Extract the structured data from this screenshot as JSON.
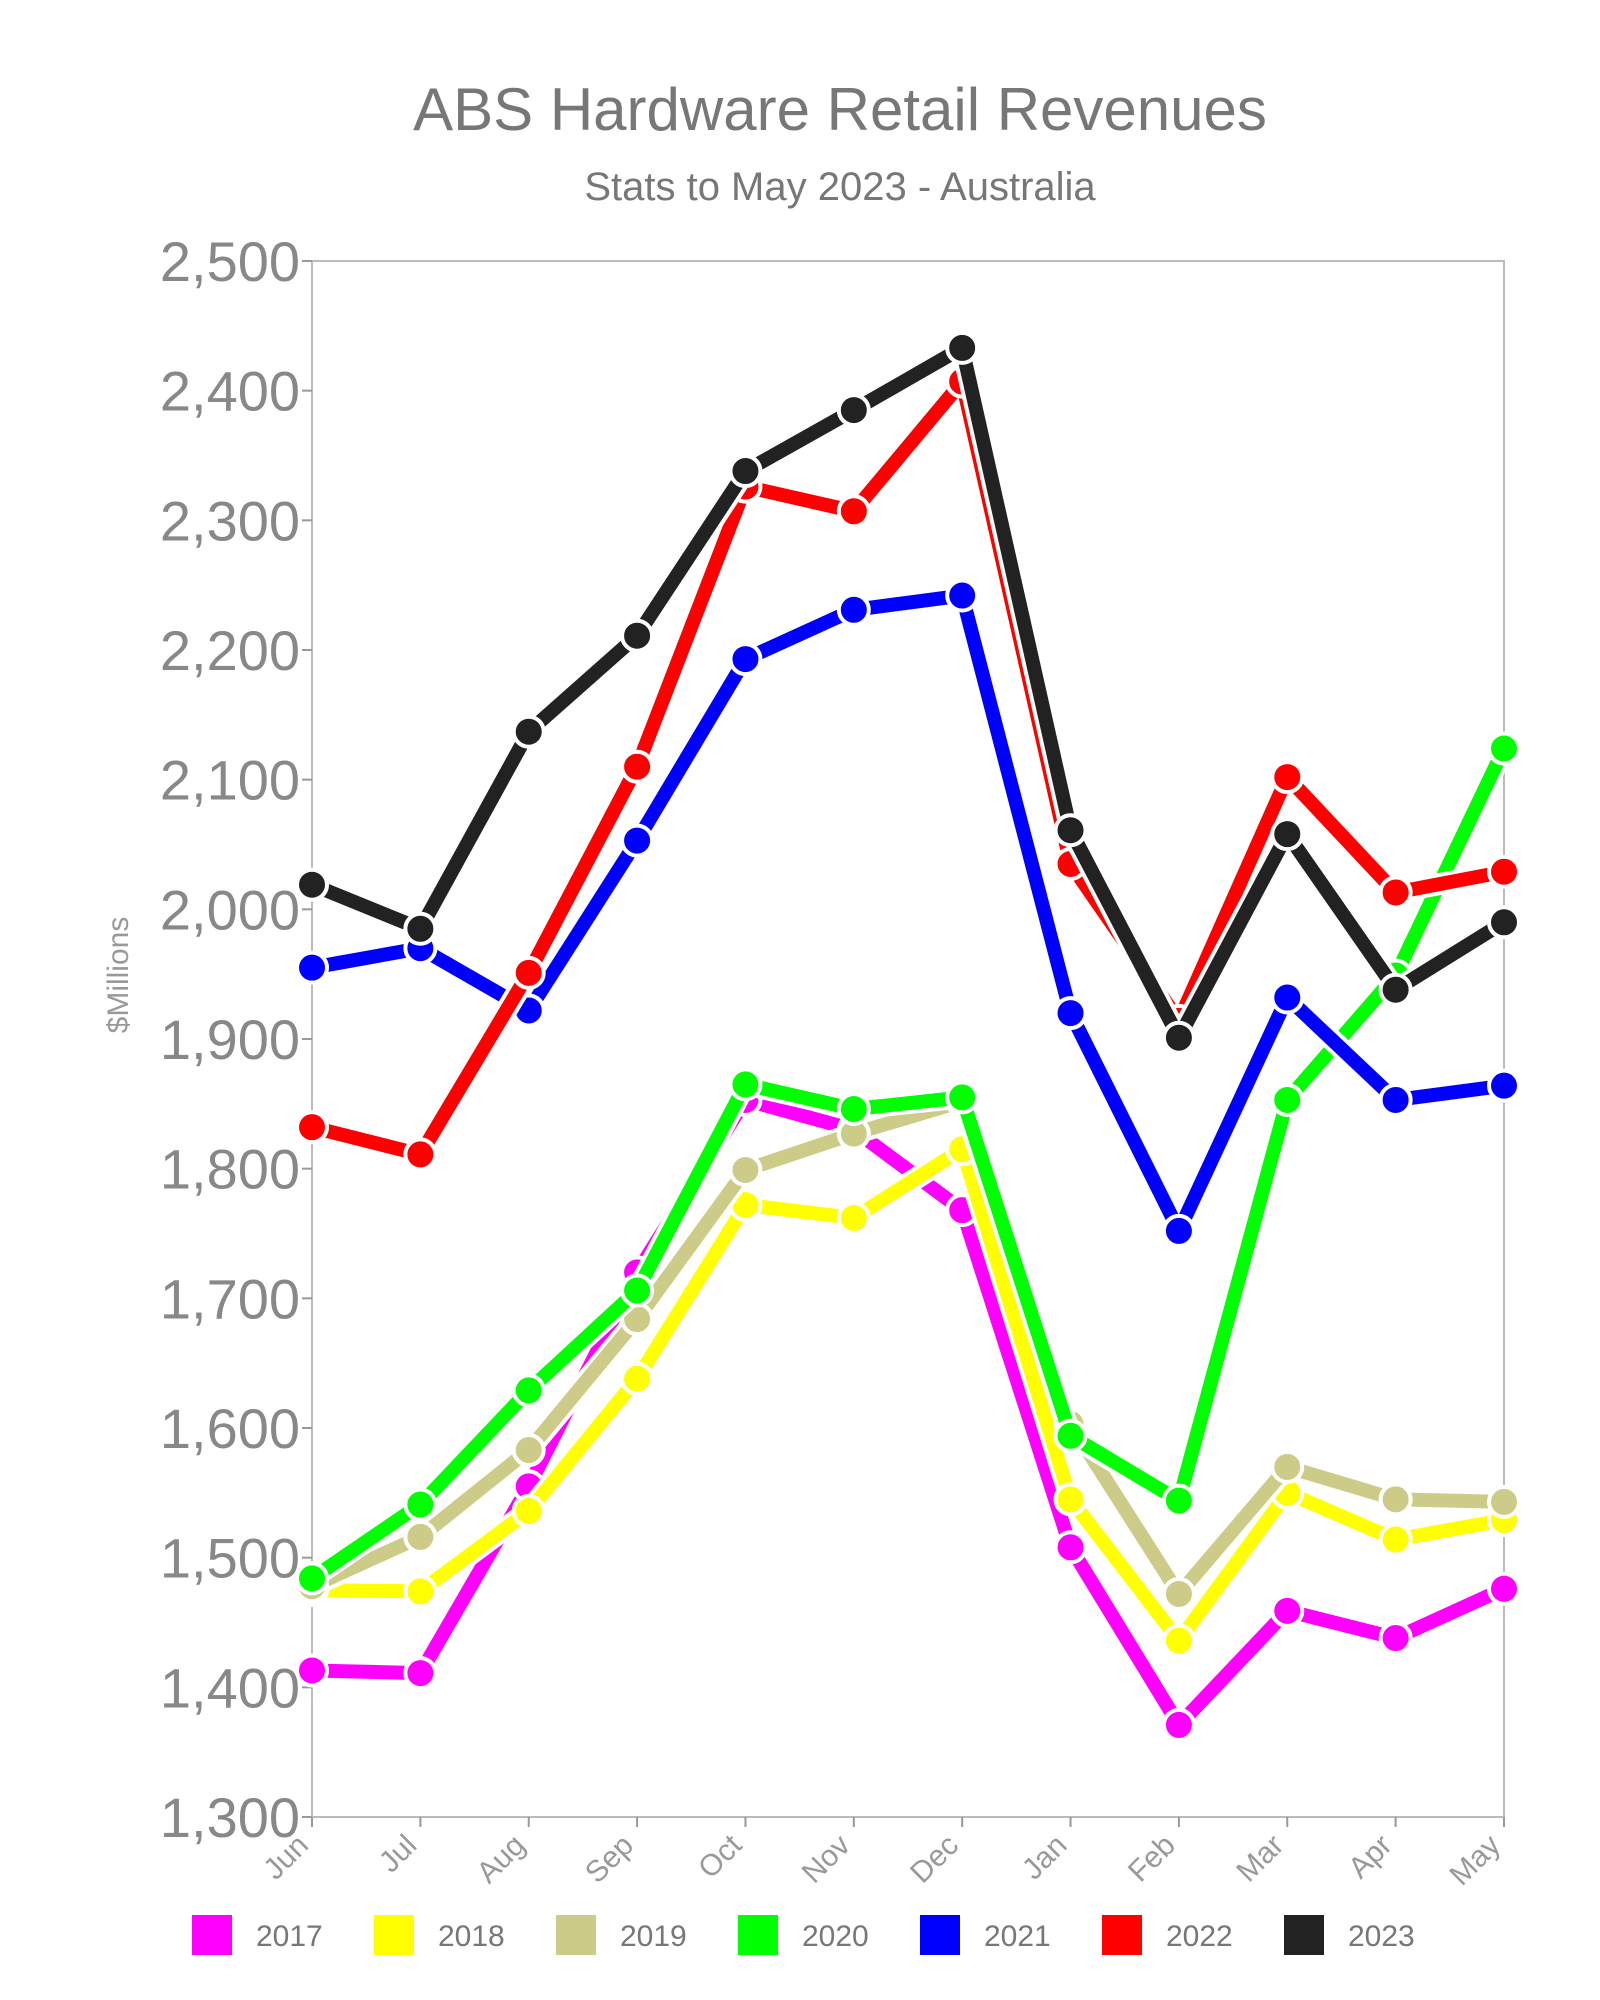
{
  "chart_data": {
    "type": "line",
    "title": "ABS Hardware Retail Revenues",
    "subtitle": "Stats to May 2023 - Australia",
    "xlabel": "",
    "ylabel": "$Millions",
    "ylim": [
      1300,
      2500
    ],
    "yticks": [
      1300,
      1400,
      1500,
      1600,
      1700,
      1800,
      1900,
      2000,
      2100,
      2200,
      2300,
      2400,
      2500
    ],
    "ytick_labels": [
      "1,300",
      "1,400",
      "1,500",
      "1,600",
      "1,700",
      "1,800",
      "1,900",
      "2,000",
      "2,100",
      "2,200",
      "2,300",
      "2,400",
      "2,500"
    ],
    "categories": [
      "Jun",
      "Jul",
      "Aug",
      "Sep",
      "Oct",
      "Nov",
      "Dec",
      "Jan",
      "Feb",
      "Mar",
      "Apr",
      "May"
    ],
    "grid": false,
    "legend_position": "bottom",
    "series": [
      {
        "name": "2017",
        "color": "#ff00ff",
        "values": [
          1413,
          1411,
          1555,
          1720,
          1853,
          1830,
          1768,
          1508,
          1371,
          1459,
          1438,
          1476
        ]
      },
      {
        "name": "2018",
        "color": "#ffff00",
        "values": [
          1475,
          1474,
          1536,
          1638,
          1772,
          1762,
          1815,
          1545,
          1436,
          1550,
          1514,
          1529
        ]
      },
      {
        "name": "2019",
        "color": "#cccc88",
        "values": [
          1478,
          1516,
          1583,
          1684,
          1799,
          1827,
          1852,
          1603,
          1472,
          1570,
          1545,
          1543
        ]
      },
      {
        "name": "2020",
        "color": "#00ff00",
        "values": [
          1484,
          1541,
          1629,
          1706,
          1865,
          1846,
          1855,
          1594,
          1544,
          1853,
          1949,
          2124
        ]
      },
      {
        "name": "2021",
        "color": "#0000ff",
        "values": [
          1955,
          1970,
          1922,
          2053,
          2193,
          2231,
          2242,
          1920,
          1752,
          1932,
          1853,
          1864
        ]
      },
      {
        "name": "2022",
        "color": "#ff0000",
        "values": [
          1832,
          1811,
          1951,
          2110,
          2326,
          2307,
          2407,
          2035,
          1914,
          2102,
          2013,
          2029
        ]
      },
      {
        "name": "2023",
        "color": "#222222",
        "values": [
          2019,
          1985,
          2137,
          2211,
          2338,
          2385,
          2433,
          2061,
          1901,
          2058,
          1938,
          1990
        ]
      }
    ]
  }
}
